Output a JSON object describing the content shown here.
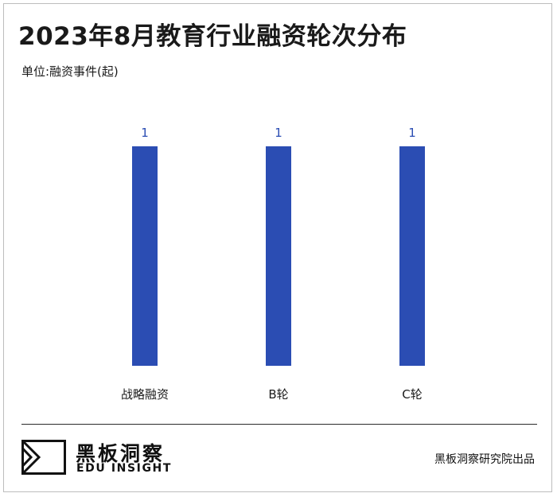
{
  "header": {
    "title": "2023年8月教育行业融资轮次分布",
    "unit": "单位:融资事件(起)"
  },
  "colors": {
    "bar": "#2b4db3",
    "value_label": "#2b4db3",
    "text": "#1a1a1a"
  },
  "chart_data": {
    "type": "bar",
    "categories": [
      "战略融资",
      "B轮",
      "C轮"
    ],
    "values": [
      1,
      1,
      1
    ],
    "data_labels": [
      "1",
      "1",
      "1"
    ],
    "ylim": [
      0,
      1
    ],
    "grid": false,
    "legend": "none"
  },
  "footer": {
    "brand_cn": "黑板洞察",
    "brand_en": "EDU INSIGHT",
    "logo_icon": "edu-insight-logo-icon",
    "credit": "黑板洞察研究院出品"
  }
}
